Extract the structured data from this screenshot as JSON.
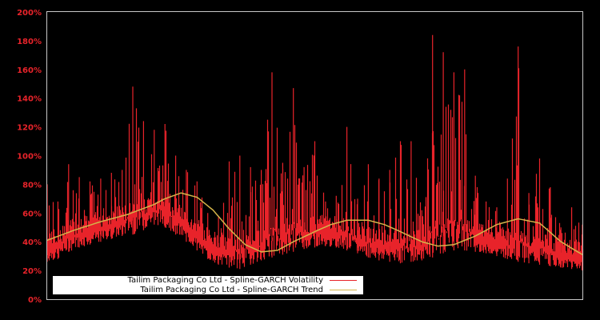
{
  "chart_data": {
    "type": "line",
    "title": "",
    "xlabel": "",
    "ylabel": "",
    "ylim": [
      0,
      200
    ],
    "y_ticks": [
      "0%",
      "20%",
      "40%",
      "60%",
      "80%",
      "100%",
      "120%",
      "140%",
      "160%",
      "180%",
      "200%"
    ],
    "grid": false,
    "legend_position": "lower left",
    "colors": {
      "background": "#000000",
      "axis": "#c8c8c8",
      "tick_label": "#e8232a",
      "volatility": "#e8232a",
      "trend": "#d4b44a"
    },
    "series": [
      {
        "name": "Tailim Packaging Co Ltd - Spline-GARCH Volatility",
        "note": "x is fraction of time span (0..1), values in % (low, high envelope samples)",
        "x": [
          0.0,
          0.02,
          0.04,
          0.06,
          0.08,
          0.1,
          0.12,
          0.14,
          0.16,
          0.18,
          0.2,
          0.22,
          0.24,
          0.26,
          0.28,
          0.3,
          0.32,
          0.34,
          0.36,
          0.38,
          0.4,
          0.42,
          0.44,
          0.46,
          0.48,
          0.5,
          0.52,
          0.54,
          0.56,
          0.58,
          0.6,
          0.62,
          0.64,
          0.66,
          0.68,
          0.7,
          0.72,
          0.74,
          0.76,
          0.78,
          0.8,
          0.82,
          0.84,
          0.86,
          0.88,
          0.9,
          0.92,
          0.94,
          0.96,
          0.98,
          1.0
        ],
        "low": [
          26,
          28,
          33,
          36,
          38,
          40,
          42,
          44,
          45,
          48,
          52,
          50,
          45,
          40,
          34,
          28,
          24,
          22,
          21,
          24,
          27,
          29,
          31,
          33,
          35,
          36,
          37,
          36,
          34,
          32,
          29,
          27,
          26,
          25,
          26,
          27,
          29,
          32,
          34,
          34,
          33,
          32,
          30,
          28,
          26,
          25,
          24,
          23,
          22,
          21,
          20
        ],
        "high": [
          80,
          68,
          94,
          85,
          82,
          84,
          88,
          90,
          148,
          124,
          118,
          122,
          100,
          90,
          82,
          60,
          58,
          96,
          100,
          92,
          90,
          158,
          95,
          147,
          92,
          110,
          68,
          72,
          120,
          70,
          94,
          84,
          90,
          110,
          110,
          62,
          184,
          172,
          158,
          160,
          86,
          68,
          64,
          84,
          176,
          74,
          98,
          78,
          50,
          64,
          52
        ]
      },
      {
        "name": "Tailim Packaging Co Ltd - Spline-GARCH Trend",
        "x": [
          0.0,
          0.05,
          0.1,
          0.15,
          0.2,
          0.22,
          0.25,
          0.28,
          0.31,
          0.34,
          0.37,
          0.4,
          0.43,
          0.46,
          0.5,
          0.53,
          0.56,
          0.6,
          0.63,
          0.66,
          0.7,
          0.73,
          0.76,
          0.8,
          0.84,
          0.88,
          0.92,
          0.96,
          1.0
        ],
        "values": [
          41,
          48,
          54,
          59,
          66,
          70,
          74,
          71,
          62,
          49,
          38,
          33,
          34,
          40,
          47,
          52,
          55,
          55,
          52,
          47,
          40,
          37,
          38,
          44,
          52,
          56,
          53,
          40,
          31
        ]
      }
    ]
  },
  "legend": {
    "items": [
      {
        "label": "Tailim Packaging Co Ltd - Spline-GARCH Volatility",
        "color": "#e8232a"
      },
      {
        "label": "Tailim Packaging Co Ltd - Spline-GARCH Trend",
        "color": "#d4b44a"
      }
    ]
  }
}
